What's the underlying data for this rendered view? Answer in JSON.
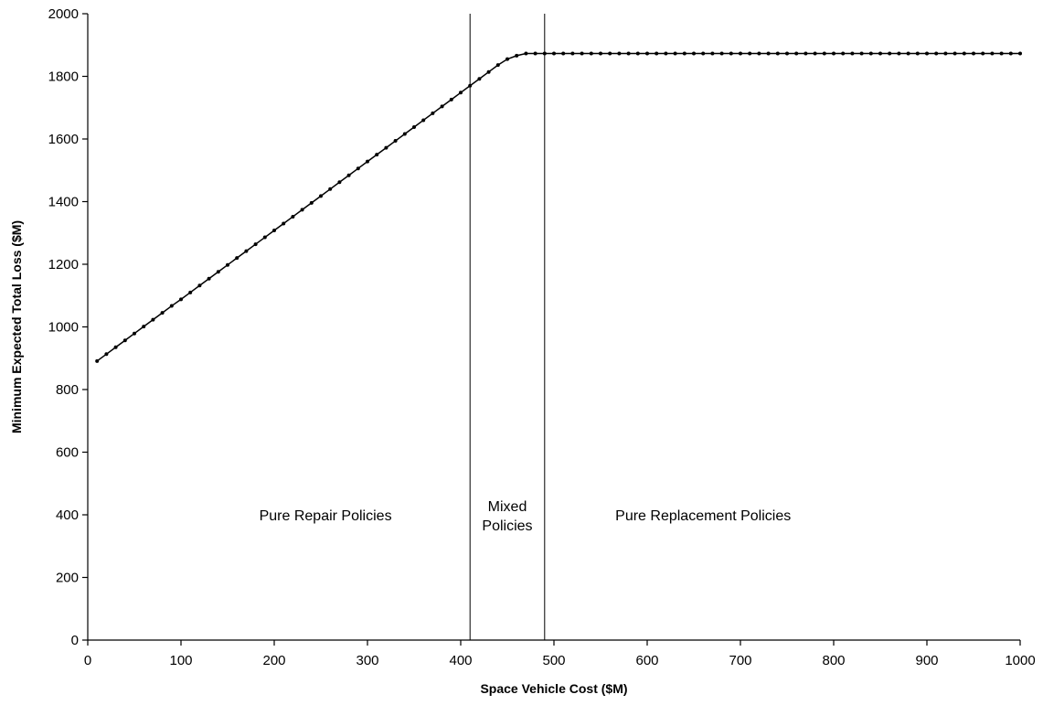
{
  "chart_data": {
    "type": "line",
    "title": "",
    "xlabel": "Space Vehicle Cost ($M)",
    "ylabel": "Minimum Expected Total Loss ($M)",
    "xlim": [
      0,
      1000
    ],
    "ylim": [
      0,
      2000
    ],
    "xticks": [
      0,
      100,
      200,
      300,
      400,
      500,
      600,
      700,
      800,
      900,
      1000
    ],
    "yticks": [
      0,
      200,
      400,
      600,
      800,
      1000,
      1200,
      1400,
      1600,
      1800,
      2000
    ],
    "grid": false,
    "legend": "none",
    "colors": {
      "line": "#000000",
      "marker": "#000000",
      "axis": "#000000",
      "background": "#ffffff"
    },
    "series": [
      {
        "name": "",
        "x_start": 10,
        "x_step": 10,
        "values": [
          891,
          913,
          935,
          957,
          979,
          1001,
          1023,
          1045,
          1067,
          1088,
          1110,
          1132,
          1154,
          1176,
          1198,
          1220,
          1242,
          1264,
          1286,
          1308,
          1330,
          1352,
          1374,
          1396,
          1418,
          1440,
          1462,
          1484,
          1506,
          1528,
          1550,
          1572,
          1594,
          1616,
          1638,
          1660,
          1682,
          1704,
          1726,
          1748,
          1770,
          1792,
          1814,
          1836,
          1855,
          1866,
          1873,
          1873,
          1873,
          1873,
          1873,
          1873,
          1873,
          1873,
          1873,
          1873,
          1873,
          1873,
          1873,
          1873,
          1873,
          1873,
          1873,
          1873,
          1873,
          1873,
          1873,
          1873,
          1873,
          1873,
          1873,
          1873,
          1873,
          1873,
          1873,
          1873,
          1873,
          1873,
          1873,
          1873,
          1873,
          1873,
          1873,
          1873,
          1873,
          1873,
          1873,
          1873,
          1873,
          1873,
          1873,
          1873,
          1873,
          1873,
          1873,
          1873,
          1873,
          1873,
          1873,
          1873
        ]
      }
    ],
    "vertical_lines": [
      410,
      490
    ],
    "annotations": [
      {
        "name": "pure-repair",
        "lines": [
          "Pure Repair Policies"
        ],
        "x": 255,
        "y": 400
      },
      {
        "name": "mixed",
        "lines": [
          "Mixed",
          "Policies"
        ],
        "x": 450,
        "y": 400
      },
      {
        "name": "pure-replacement",
        "lines": [
          "Pure Replacement Policies"
        ],
        "x": 660,
        "y": 400
      }
    ]
  }
}
